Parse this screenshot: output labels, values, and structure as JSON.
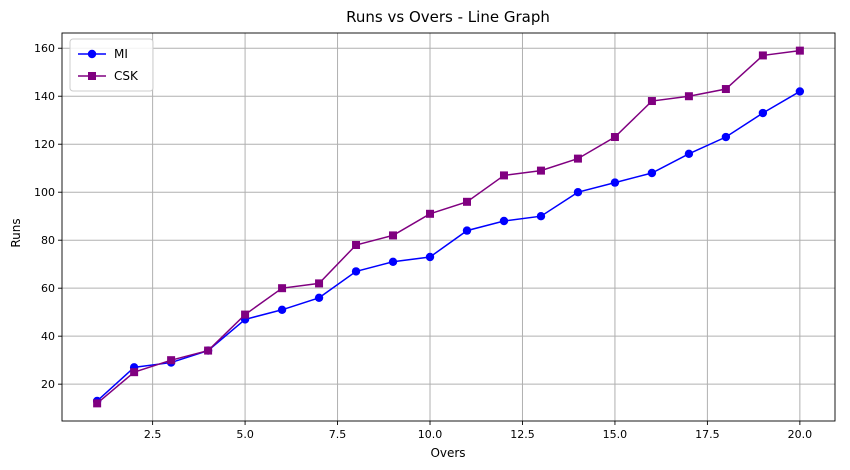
{
  "chart_data": {
    "type": "line",
    "title": "Runs vs Overs - Line Graph",
    "xlabel": "Overs",
    "ylabel": "Runs",
    "xlim": [
      0.05,
      20.95
    ],
    "ylim": [
      4.65,
      166.35
    ],
    "xticks": [
      2.5,
      5.0,
      7.5,
      10.0,
      12.5,
      15.0,
      17.5,
      20.0
    ],
    "xtick_labels": [
      "2.5",
      "5.0",
      "7.5",
      "10.0",
      "12.5",
      "15.0",
      "17.5",
      "20.0"
    ],
    "yticks": [
      20,
      40,
      60,
      80,
      100,
      120,
      140,
      160
    ],
    "ytick_labels": [
      "20",
      "40",
      "60",
      "80",
      "100",
      "120",
      "140",
      "160"
    ],
    "grid": true,
    "legend_position": "top-left",
    "x": [
      1,
      2,
      3,
      4,
      5,
      6,
      7,
      8,
      9,
      10,
      11,
      12,
      13,
      14,
      15,
      16,
      17,
      18,
      19,
      20
    ],
    "series": [
      {
        "name": "MI",
        "color": "#0000ff",
        "marker": "circle",
        "values": [
          13,
          27,
          29,
          34,
          47,
          51,
          56,
          67,
          71,
          73,
          84,
          88,
          90,
          100,
          104,
          108,
          116,
          123,
          133,
          142
        ]
      },
      {
        "name": "CSK",
        "color": "#800080",
        "marker": "square",
        "values": [
          12,
          25,
          30,
          34,
          49,
          60,
          62,
          78,
          82,
          91,
          96,
          107,
          109,
          114,
          123,
          138,
          140,
          143,
          157,
          159
        ]
      }
    ]
  }
}
